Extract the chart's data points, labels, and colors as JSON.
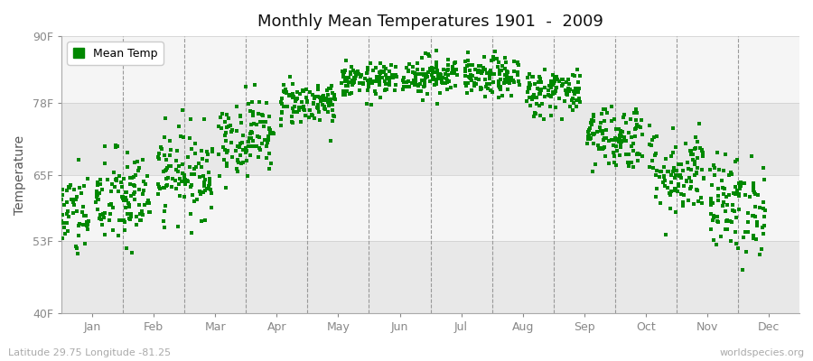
{
  "title": "Monthly Mean Temperatures 1901  -  2009",
  "ylabel": "Temperature",
  "xlabel_months": [
    "Jan",
    "Feb",
    "Mar",
    "Apr",
    "May",
    "Jun",
    "Jul",
    "Aug",
    "Sep",
    "Oct",
    "Nov",
    "Dec"
  ],
  "ytick_labels": [
    "40F",
    "53F",
    "65F",
    "78F",
    "90F"
  ],
  "ytick_values": [
    40,
    53,
    65,
    78,
    90
  ],
  "ylim": [
    40,
    90
  ],
  "dot_color": "#008800",
  "bg_color": "#ffffff",
  "plot_bg_color": "#f5f5f5",
  "band_color_light": "#f5f5f5",
  "band_color_dark": "#e8e8e8",
  "legend_label": "Mean Temp",
  "footnote_left": "Latitude 29.75 Longitude -81.25",
  "footnote_right": "worldspecies.org",
  "years": 109,
  "monthly_means": [
    57.5,
    60.5,
    65.5,
    72.0,
    78.0,
    82.0,
    83.0,
    82.5,
    80.0,
    72.0,
    65.5,
    59.5
  ],
  "monthly_stds": [
    4.0,
    4.5,
    4.0,
    3.5,
    2.0,
    1.5,
    1.8,
    1.8,
    2.2,
    3.0,
    4.0,
    4.5
  ],
  "seed": 42
}
